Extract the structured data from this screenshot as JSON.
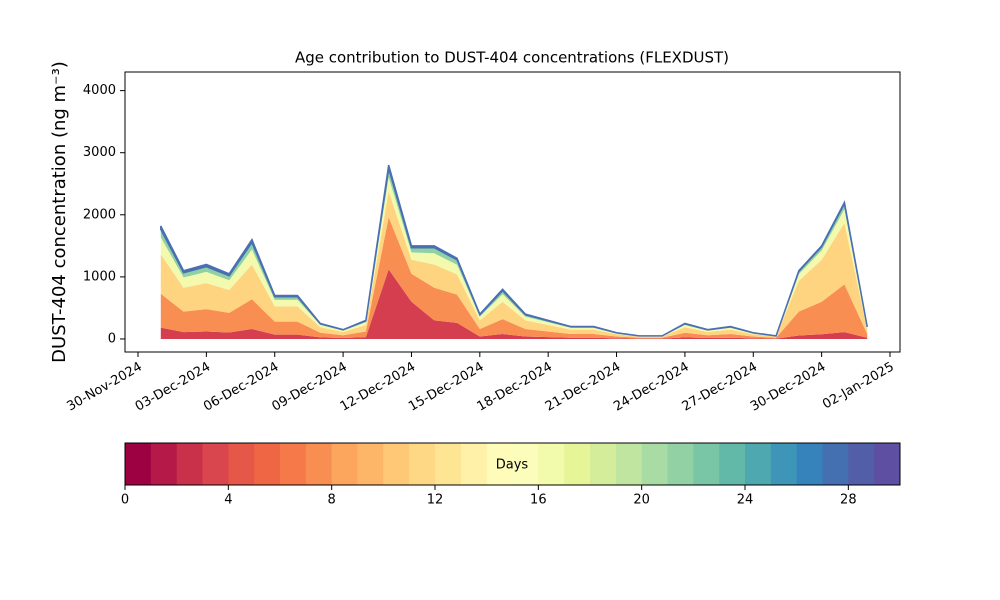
{
  "chart_data": {
    "type": "stacked_area",
    "title": "Age contribution to DUST-404 concentrations (FLEXDUST)",
    "y_label": "DUST-404 concentration (ng m⁻³)",
    "x": [
      "2024-12-01",
      "2024-12-02",
      "2024-12-03",
      "2024-12-04",
      "2024-12-05",
      "2024-12-06",
      "2024-12-07",
      "2024-12-08",
      "2024-12-09",
      "2024-12-10",
      "2024-12-11",
      "2024-12-12",
      "2024-12-13",
      "2024-12-14",
      "2024-12-15",
      "2024-12-16",
      "2024-12-17",
      "2024-12-18",
      "2024-12-19",
      "2024-12-20",
      "2024-12-21",
      "2024-12-22",
      "2024-12-23",
      "2024-12-24",
      "2024-12-25",
      "2024-12-26",
      "2024-12-27",
      "2024-12-28",
      "2024-12-29",
      "2024-12-30",
      "2024-12-31",
      "2025-01-01"
    ],
    "series": [
      {
        "color": "#d53e4f",
        "values": [
          182,
          110,
          120,
          105,
          160,
          70,
          70,
          25,
          15,
          30,
          1120,
          600,
          300,
          260,
          40,
          80,
          40,
          30,
          20,
          20,
          10,
          5,
          5,
          25,
          15,
          20,
          10,
          5,
          55,
          75,
          110,
          20
        ]
      },
      {
        "color": "#f98e52",
        "values": [
          546,
          330,
          360,
          315,
          480,
          210,
          210,
          75,
          45,
          90,
          840,
          450,
          525,
          455,
          120,
          240,
          120,
          90,
          60,
          60,
          30,
          15,
          15,
          75,
          45,
          60,
          30,
          15,
          385,
          525,
          770,
          60
        ]
      },
      {
        "color": "#fed481",
        "values": [
          637,
          385,
          420,
          368,
          560,
          245,
          245,
          88,
          53,
          105,
          420,
          225,
          375,
          325,
          140,
          280,
          140,
          105,
          70,
          70,
          35,
          18,
          18,
          88,
          53,
          70,
          35,
          18,
          495,
          675,
          990,
          70
        ]
      },
      {
        "color": "#f4faad",
        "values": [
          273,
          165,
          180,
          158,
          240,
          105,
          105,
          38,
          22,
          45,
          224,
          120,
          180,
          156,
          60,
          120,
          60,
          45,
          30,
          30,
          15,
          7,
          7,
          38,
          22,
          30,
          15,
          7,
          110,
          150,
          220,
          30
        ]
      },
      {
        "color": "#8fd1a4",
        "values": [
          127,
          77,
          84,
          73,
          112,
          49,
          49,
          17,
          11,
          21,
          140,
          75,
          90,
          78,
          28,
          56,
          28,
          21,
          14,
          14,
          7,
          4,
          4,
          17,
          11,
          14,
          7,
          4,
          44,
          60,
          88,
          14
        ]
      },
      {
        "color": "#4a6fb2",
        "values": [
          55,
          33,
          36,
          31,
          48,
          21,
          21,
          7,
          4,
          9,
          56,
          30,
          30,
          26,
          12,
          24,
          12,
          9,
          6,
          6,
          3,
          1,
          1,
          7,
          4,
          6,
          3,
          1,
          11,
          15,
          22,
          6
        ]
      }
    ],
    "xlim": [
      "2024-11-30",
      "2025-01-02"
    ],
    "xticks": [
      {
        "value": "2024-11-30",
        "label": "30-Nov-2024"
      },
      {
        "value": "2024-12-03",
        "label": "03-Dec-2024"
      },
      {
        "value": "2024-12-06",
        "label": "06-Dec-2024"
      },
      {
        "value": "2024-12-09",
        "label": "09-Dec-2024"
      },
      {
        "value": "2024-12-12",
        "label": "12-Dec-2024"
      },
      {
        "value": "2024-12-15",
        "label": "15-Dec-2024"
      },
      {
        "value": "2024-12-18",
        "label": "18-Dec-2024"
      },
      {
        "value": "2024-12-21",
        "label": "21-Dec-2024"
      },
      {
        "value": "2024-12-24",
        "label": "24-Dec-2024"
      },
      {
        "value": "2024-12-27",
        "label": "27-Dec-2024"
      },
      {
        "value": "2024-12-30",
        "label": "30-Dec-2024"
      },
      {
        "value": "2025-01-02",
        "label": "02-Jan-2025"
      }
    ],
    "ylim": [
      -210,
      4300
    ],
    "yticks": [
      0,
      1000,
      2000,
      3000,
      4000
    ],
    "colorbar": {
      "label": "Days",
      "lim": [
        0,
        30
      ],
      "ticks": [
        0,
        4,
        8,
        12,
        16,
        20,
        24,
        28
      ],
      "colors": [
        "#9e0142",
        "#b41947",
        "#c9314b",
        "#da464d",
        "#e55749",
        "#ef6645",
        "#f67a49",
        "#f98e52",
        "#fca55d",
        "#fdb668",
        "#fec877",
        "#fed884",
        "#fee593",
        "#fff1a8",
        "#fffbb9",
        "#fbfdba",
        "#f2faac",
        "#e6f598",
        "#d4ed9b",
        "#c0e5a0",
        "#a9dca4",
        "#91d1a4",
        "#78c6a5",
        "#62b9a7",
        "#4ea8af",
        "#3d95b8",
        "#3682ba",
        "#4470b1",
        "#525ea8",
        "#5e4fa2"
      ]
    }
  }
}
